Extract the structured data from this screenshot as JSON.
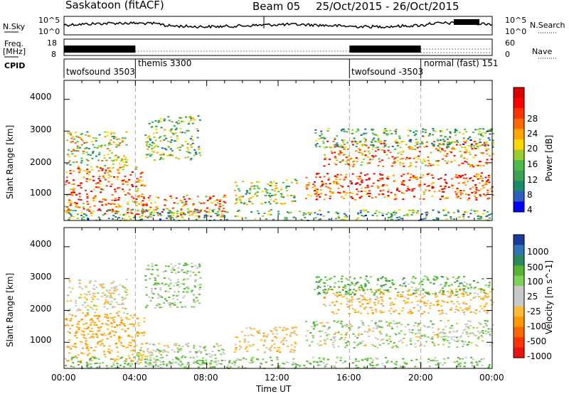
{
  "header": {
    "station": "Saskatoon (fitACF)",
    "beam": "Beam 05",
    "date_range": "25/Oct/2015 - 26/Oct/2015"
  },
  "strip_labels": {
    "nsky": "N.Sky",
    "nsearch": "N.Search",
    "freq_line1": "Freq.",
    "freq_line2": "[MHz]",
    "nave": "Nave",
    "cpid": "CPID"
  },
  "noise_axis": {
    "left_top": "10^5",
    "left_bottom": "10^0",
    "right_top": "10^5",
    "right_bottom": "10^0"
  },
  "freq_axis": {
    "left_ticks": [
      "18",
      "8"
    ],
    "right_ticks": [
      "60",
      "0"
    ]
  },
  "cpid_segments": [
    {
      "label": "twofsound 3503",
      "start_hour": 0,
      "end_hour": 4
    },
    {
      "label": "themis 3300",
      "start_hour": 4,
      "end_hour": 16
    },
    {
      "label": "twofsound -3503",
      "start_hour": 16,
      "end_hour": 20
    },
    {
      "label": "normal (fast) 151",
      "start_hour": 20,
      "end_hour": 24
    }
  ],
  "colors": {
    "power_scale": [
      "#0000ff",
      "#2c5fbd",
      "#1b8a6b",
      "#3aa352",
      "#4dbb4d",
      "#9acd32",
      "#ffd700",
      "#ffa500",
      "#ff6a00",
      "#ff3300",
      "#ff0000",
      "#dd0000"
    ],
    "velocity_scale": [
      "#1a3a9c",
      "#2f74b5",
      "#2a8a5c",
      "#56b435",
      "#7dd35a",
      "#c8c8c8",
      "#c8c8c8",
      "#ffbb33",
      "#ff9900",
      "#ff6600",
      "#ff3300",
      "#ee1111"
    ]
  },
  "chart_data": [
    {
      "type": "heatmap",
      "name": "power",
      "ylabel": "Slant Range [km]",
      "yticks": [
        "1000",
        "2000",
        "3000",
        "4000"
      ],
      "ylim": [
        180,
        4600
      ],
      "xlim": [
        0,
        24
      ],
      "colorbar_label": "Power [dB]",
      "colorbar_ticks": [
        "4",
        "8",
        "12",
        "16",
        "20",
        "24",
        "28"
      ],
      "colorbar_range": [
        0,
        30
      ],
      "scatter_regions": [
        {
          "start_hour": 0.0,
          "end_hour": 4.5,
          "range_min": 400,
          "range_max": 1900,
          "value": 22
        },
        {
          "start_hour": 0.1,
          "end_hour": 3.5,
          "range_min": 1900,
          "range_max": 3000,
          "value": 14
        },
        {
          "start_hour": 4.5,
          "end_hour": 7.6,
          "range_min": 2100,
          "range_max": 3500,
          "value": 12
        },
        {
          "start_hour": 4.0,
          "end_hour": 9.0,
          "range_min": 300,
          "range_max": 1000,
          "value": 20
        },
        {
          "start_hour": 9.5,
          "end_hour": 13.0,
          "range_min": 700,
          "range_max": 1500,
          "value": 12
        },
        {
          "start_hour": 13.5,
          "end_hour": 24.0,
          "range_min": 850,
          "range_max": 1700,
          "value": 24
        },
        {
          "start_hour": 14.5,
          "end_hour": 24.0,
          "range_min": 1900,
          "range_max": 2700,
          "value": 20
        },
        {
          "start_hour": 14.0,
          "end_hour": 24.0,
          "range_min": 2500,
          "range_max": 3100,
          "value": 10
        },
        {
          "start_hour": 0.0,
          "end_hour": 24.0,
          "range_min": 200,
          "range_max": 550,
          "value": 10
        }
      ]
    },
    {
      "type": "heatmap",
      "name": "velocity",
      "ylabel": "Slant Range [km]",
      "yticks": [
        "1000",
        "2000",
        "3000",
        "4000"
      ],
      "ylim": [
        180,
        4600
      ],
      "xlim": [
        0,
        24
      ],
      "xlabel": "Time UT",
      "xticks": [
        "00:00",
        "04:00",
        "08:00",
        "12:00",
        "16:00",
        "20:00",
        "00:00"
      ],
      "colorbar_label": "Velocity [m s^-1]",
      "colorbar_ticks": [
        "1000",
        "500",
        "100",
        "25",
        "-25",
        "-100",
        "-500",
        "-1000"
      ],
      "scatter_regions": [
        {
          "start_hour": 0.0,
          "end_hour": 4.5,
          "range_min": 400,
          "range_max": 1900,
          "value": -250
        },
        {
          "start_hour": 0.1,
          "end_hour": 3.5,
          "range_min": 1900,
          "range_max": 3000,
          "value": -80
        },
        {
          "start_hour": 4.5,
          "end_hour": 7.6,
          "range_min": 2100,
          "range_max": 3500,
          "value": 60
        },
        {
          "start_hour": 4.0,
          "end_hour": 9.0,
          "range_min": 300,
          "range_max": 1000,
          "value": 0
        },
        {
          "start_hour": 9.5,
          "end_hour": 13.0,
          "range_min": 700,
          "range_max": 1500,
          "value": -150
        },
        {
          "start_hour": 13.5,
          "end_hour": 24.0,
          "range_min": 850,
          "range_max": 1700,
          "value": 0
        },
        {
          "start_hour": 14.5,
          "end_hour": 24.0,
          "range_min": 1900,
          "range_max": 2700,
          "value": -200
        },
        {
          "start_hour": 14.0,
          "end_hour": 24.0,
          "range_min": 2500,
          "range_max": 3100,
          "value": 150
        },
        {
          "start_hour": 0.0,
          "end_hour": 24.0,
          "range_min": 200,
          "range_max": 550,
          "value": 100
        }
      ]
    }
  ]
}
